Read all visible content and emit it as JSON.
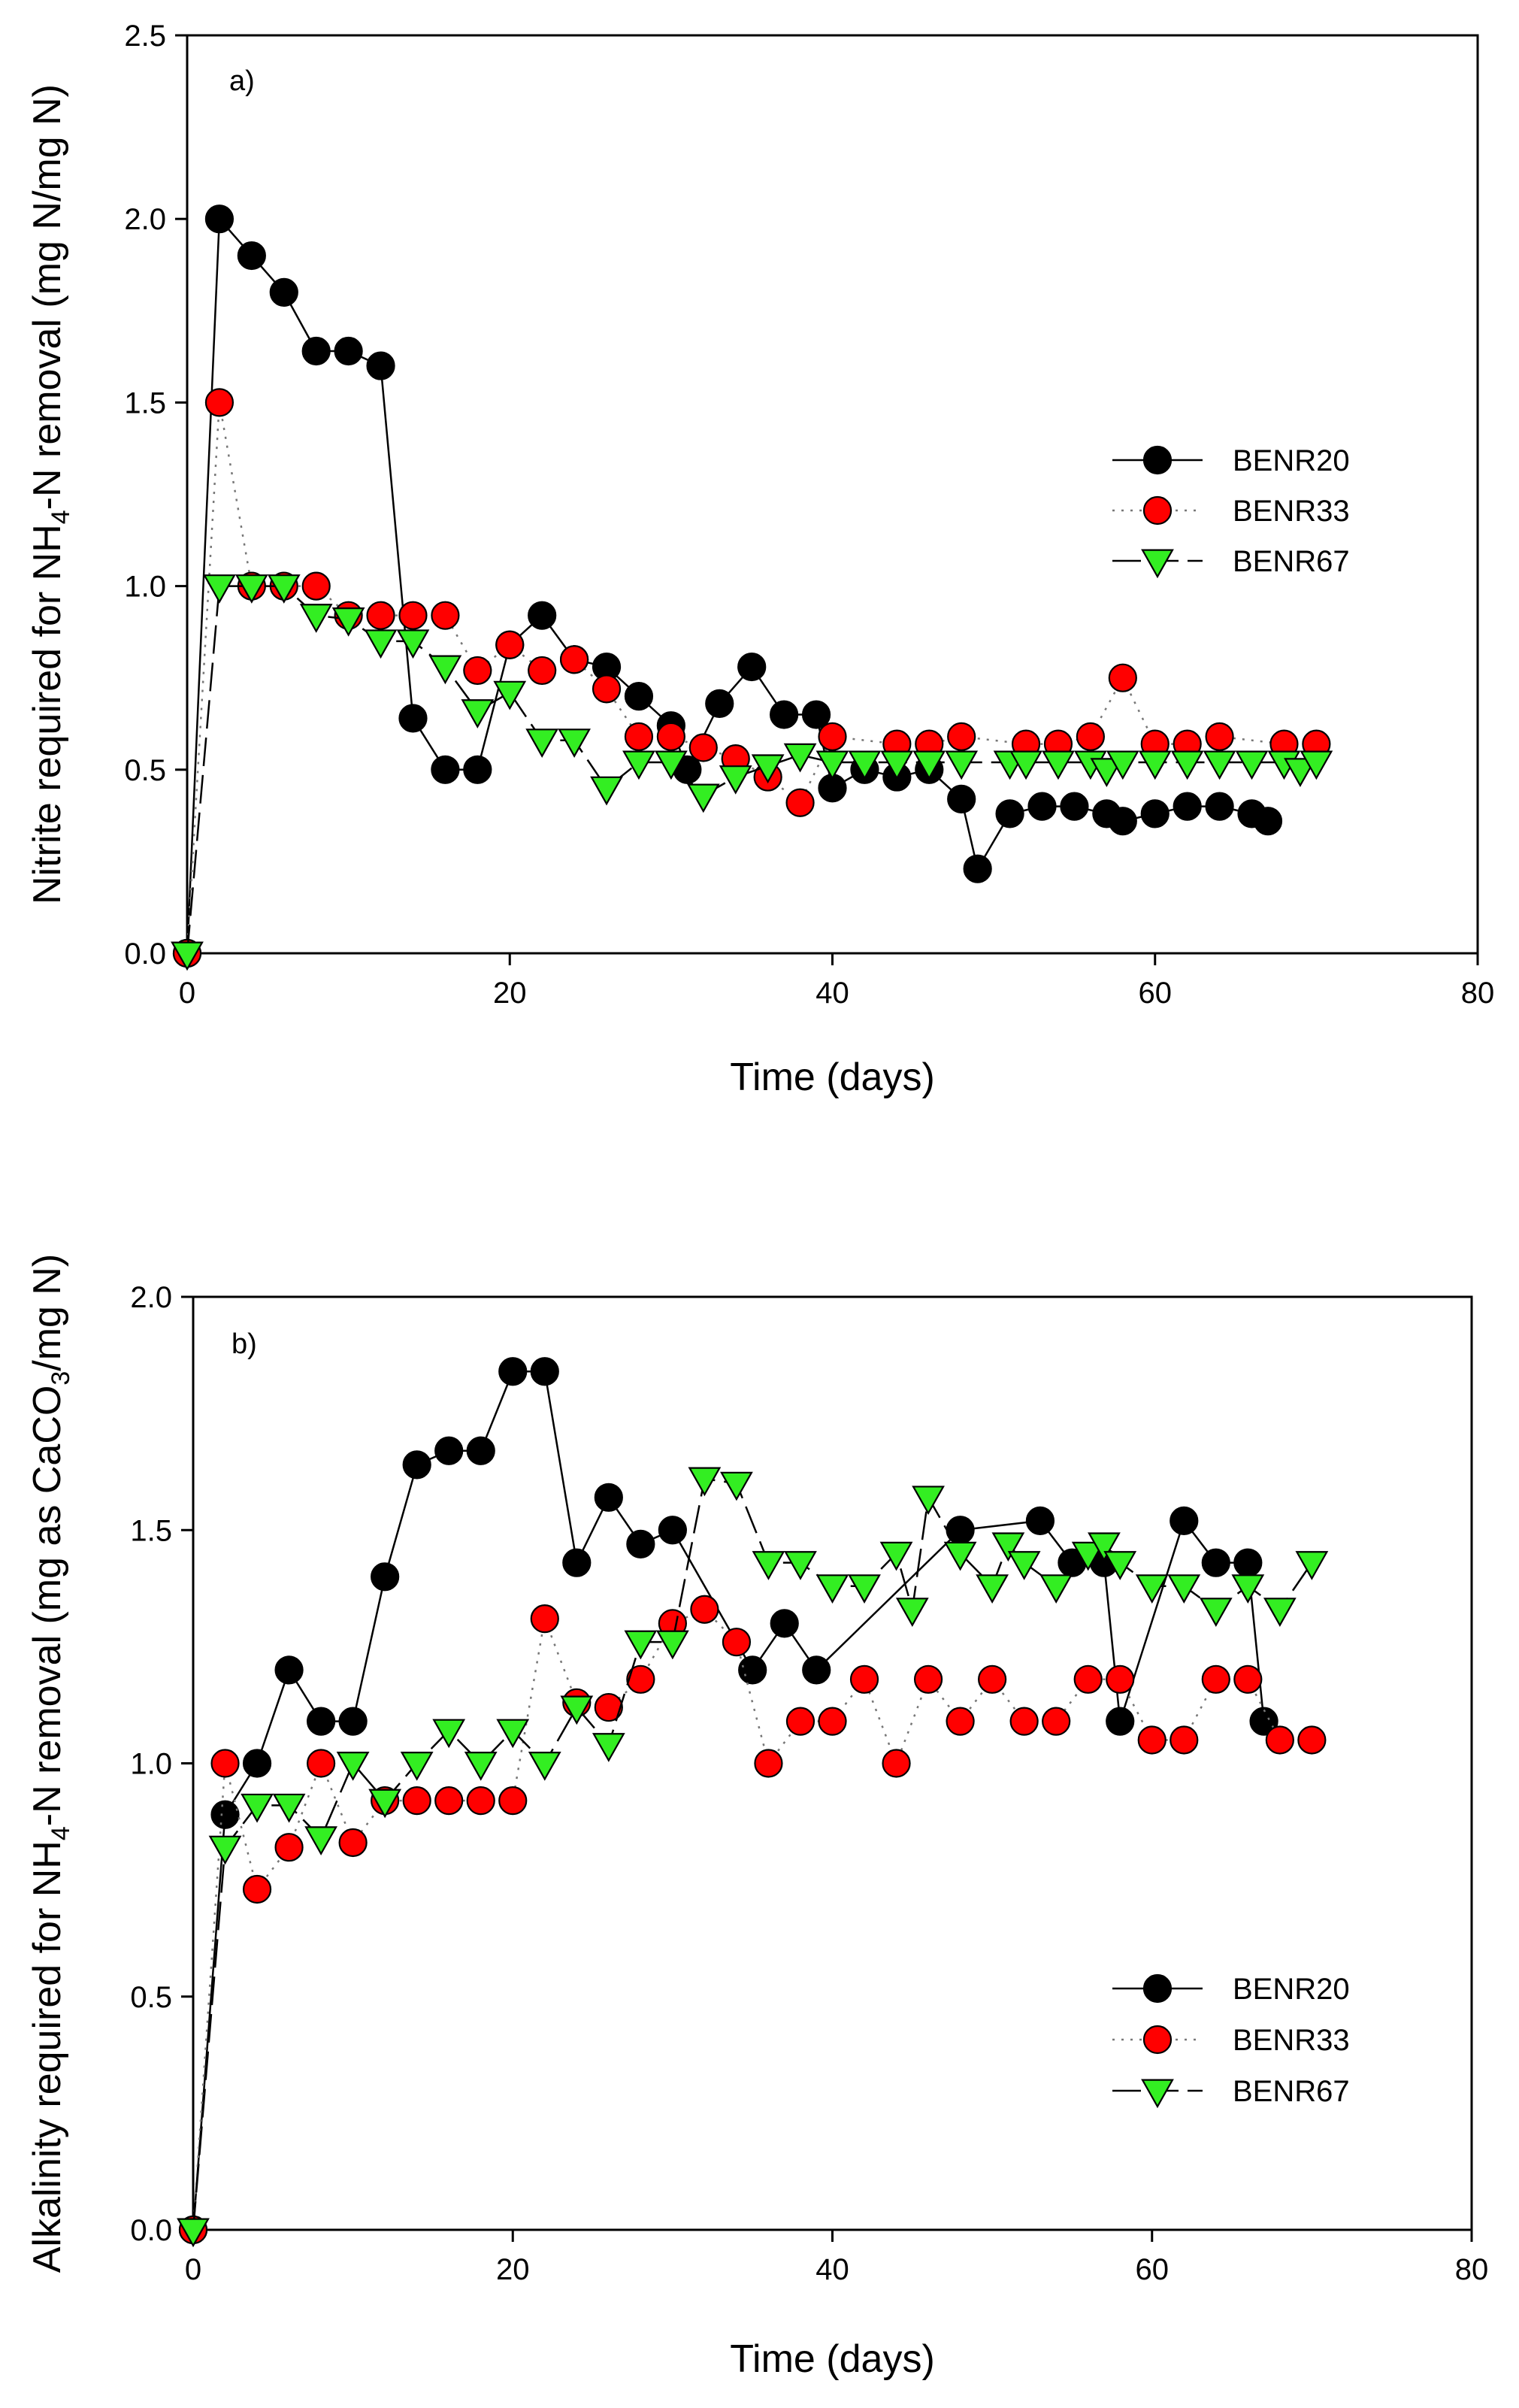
{
  "chart_data": [
    {
      "type": "scatter",
      "panel_label": "a)",
      "xlabel": "Time (days)",
      "ylabel": {
        "pre": "Nitrite required for NH",
        "sub": "4",
        "post": "-N removal (mg N/mg N)"
      },
      "xlim": [
        0,
        80
      ],
      "ylim": [
        0,
        2.5
      ],
      "xticks": [
        0,
        20,
        40,
        60,
        80
      ],
      "yticks": [
        0.0,
        0.5,
        1.0,
        1.5,
        2.0,
        2.5
      ],
      "ytick_labels": [
        "0.0",
        "0.5",
        "1.0",
        "1.5",
        "2.0",
        "2.5"
      ],
      "grid": false,
      "legend": {
        "position": "center-right",
        "entries": [
          "BENR20",
          "BENR33",
          "BENR67"
        ]
      },
      "series": [
        {
          "name": "BENR20",
          "marker": "circle",
          "color": "#000000",
          "line": "solid",
          "x": [
            0,
            2,
            4,
            6,
            8,
            10,
            12,
            14,
            16,
            18,
            20,
            22,
            24,
            26,
            28,
            30,
            31,
            33,
            35,
            37,
            39,
            40,
            42,
            44,
            46,
            48,
            49,
            51,
            53,
            55,
            57,
            58,
            60,
            62,
            64,
            66,
            67
          ],
          "y": [
            0,
            2.0,
            1.9,
            1.8,
            1.64,
            1.64,
            1.6,
            0.64,
            0.5,
            0.5,
            0.84,
            0.92,
            0.8,
            0.78,
            0.7,
            0.62,
            0.5,
            0.68,
            0.78,
            0.65,
            0.65,
            0.45,
            0.5,
            0.48,
            0.5,
            0.42,
            0.23,
            0.38,
            0.4,
            0.4,
            0.38,
            0.36,
            0.38,
            0.4,
            0.4,
            0.38,
            0.36
          ]
        },
        {
          "name": "BENR33",
          "marker": "circle",
          "color": "#ff0000",
          "line": "dotted",
          "x": [
            0,
            2,
            4,
            6,
            8,
            10,
            12,
            14,
            16,
            18,
            20,
            22,
            24,
            26,
            28,
            30,
            32,
            34,
            36,
            38,
            40,
            44,
            46,
            48,
            52,
            54,
            56,
            58,
            60,
            62,
            64,
            68,
            70
          ],
          "y": [
            0,
            1.5,
            1.0,
            1.0,
            1.0,
            0.92,
            0.92,
            0.92,
            0.92,
            0.77,
            0.84,
            0.77,
            0.8,
            0.72,
            0.59,
            0.59,
            0.56,
            0.53,
            0.48,
            0.41,
            0.59,
            0.57,
            0.57,
            0.59,
            0.57,
            0.57,
            0.59,
            0.75,
            0.57,
            0.57,
            0.59,
            0.57,
            0.57
          ]
        },
        {
          "name": "BENR67",
          "marker": "triangle-down",
          "color": "#33ee22",
          "line": "dashed",
          "x": [
            0,
            2,
            4,
            6,
            8,
            10,
            12,
            14,
            16,
            18,
            20,
            22,
            24,
            26,
            28,
            30,
            32,
            34,
            36,
            38,
            40,
            42,
            44,
            46,
            48,
            51,
            52,
            54,
            56,
            57,
            58,
            60,
            62,
            64,
            66,
            68,
            69,
            70
          ],
          "y": [
            0,
            1.0,
            1.0,
            1.0,
            0.92,
            0.91,
            0.85,
            0.85,
            0.78,
            0.66,
            0.71,
            0.58,
            0.58,
            0.45,
            0.52,
            0.52,
            0.43,
            0.48,
            0.51,
            0.54,
            0.52,
            0.52,
            0.52,
            0.52,
            0.52,
            0.52,
            0.52,
            0.52,
            0.52,
            0.5,
            0.52,
            0.52,
            0.52,
            0.52,
            0.52,
            0.52,
            0.5,
            0.52
          ]
        }
      ]
    },
    {
      "type": "scatter",
      "panel_label": "b)",
      "xlabel": "Time (days)",
      "ylabel": {
        "pre": "Alkalinity required for NH",
        "sub": "4",
        "post": "-N removal (mg as CaCO",
        "sub2": "3",
        "post2": "/mg N)"
      },
      "xlim": [
        0,
        80
      ],
      "ylim": [
        0,
        2.0
      ],
      "xticks": [
        0,
        20,
        40,
        60,
        80
      ],
      "yticks": [
        0.0,
        0.5,
        1.0,
        1.5,
        2.0
      ],
      "ytick_labels": [
        "0.0",
        "0.5",
        "1.0",
        "1.5",
        "2.0"
      ],
      "grid": false,
      "legend": {
        "position": "bottom-right",
        "entries": [
          "BENR20",
          "BENR33",
          "BENR67"
        ]
      },
      "series": [
        {
          "name": "BENR20",
          "marker": "circle",
          "color": "#000000",
          "line": "solid",
          "x": [
            0,
            2,
            4,
            6,
            8,
            10,
            12,
            14,
            16,
            18,
            20,
            22,
            24,
            26,
            28,
            30,
            35,
            37,
            39,
            48,
            53,
            55,
            57,
            58,
            62,
            64,
            66,
            67
          ],
          "y": [
            0,
            0.89,
            1.0,
            1.2,
            1.09,
            1.09,
            1.4,
            1.64,
            1.67,
            1.67,
            1.84,
            1.84,
            1.43,
            1.57,
            1.47,
            1.5,
            1.2,
            1.3,
            1.2,
            1.5,
            1.52,
            1.43,
            1.43,
            1.09,
            1.52,
            1.43,
            1.43,
            1.09
          ]
        },
        {
          "name": "BENR33",
          "marker": "circle",
          "color": "#ff0000",
          "line": "dotted",
          "x": [
            0,
            2,
            4,
            6,
            8,
            10,
            12,
            14,
            16,
            18,
            20,
            22,
            24,
            26,
            28,
            30,
            32,
            34,
            36,
            38,
            40,
            42,
            44,
            46,
            48,
            50,
            52,
            54,
            56,
            58,
            60,
            62,
            64,
            66,
            68,
            70
          ],
          "y": [
            0,
            1.0,
            0.73,
            0.82,
            1.0,
            0.83,
            0.92,
            0.92,
            0.92,
            0.92,
            0.92,
            1.31,
            1.13,
            1.12,
            1.18,
            1.3,
            1.33,
            1.26,
            1.0,
            1.09,
            1.09,
            1.18,
            1.0,
            1.18,
            1.09,
            1.18,
            1.09,
            1.09,
            1.18,
            1.18,
            1.05,
            1.05,
            1.18,
            1.18,
            1.05,
            1.05
          ]
        },
        {
          "name": "BENR67",
          "marker": "triangle-down",
          "color": "#33ee22",
          "line": "dashed",
          "x": [
            0,
            2,
            4,
            6,
            8,
            10,
            12,
            14,
            16,
            18,
            20,
            22,
            24,
            26,
            28,
            30,
            32,
            34,
            36,
            38,
            40,
            42,
            44,
            45,
            46,
            48,
            50,
            51,
            52,
            54,
            56,
            57,
            58,
            60,
            62,
            64,
            66,
            68,
            70
          ],
          "y": [
            0,
            0.82,
            0.91,
            0.91,
            0.84,
            1.0,
            0.92,
            1.0,
            1.07,
            1.0,
            1.07,
            1.0,
            1.12,
            1.04,
            1.26,
            1.26,
            1.61,
            1.6,
            1.43,
            1.43,
            1.38,
            1.38,
            1.45,
            1.33,
            1.57,
            1.45,
            1.38,
            1.47,
            1.43,
            1.38,
            1.45,
            1.47,
            1.43,
            1.38,
            1.38,
            1.33,
            1.38,
            1.33,
            1.43
          ]
        }
      ]
    }
  ]
}
